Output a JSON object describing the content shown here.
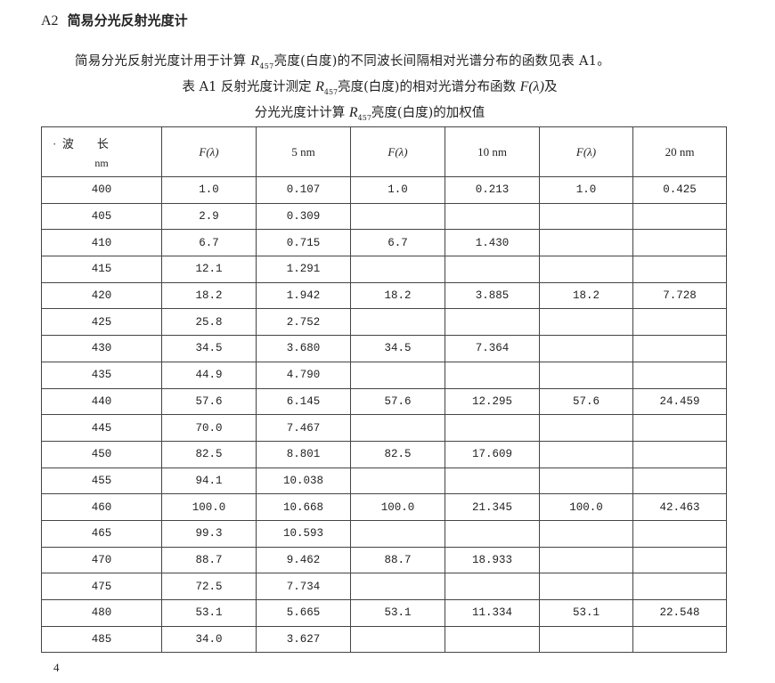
{
  "heading": {
    "number": "A2",
    "title": "简易分光反射光度计"
  },
  "paragraph": {
    "before": "简易分光反射光度计用于计算 ",
    "symbol": "R",
    "subscript": "457",
    "after": "亮度(白度)的不同波长间隔相对光谱分布的函数见表 A1。"
  },
  "caption": {
    "line1_before": "表 A1   反射光度计测定 ",
    "symbol": "R",
    "subscript": "457",
    "line1_mid": "亮度(白度)的相对光谱分布函数 ",
    "func": "F(λ)",
    "line1_after": "及",
    "line2_before": "分光光度计计算 ",
    "line2_after": "亮度(白度)的加权值"
  },
  "table": {
    "header": {
      "wavelength": "波　　长",
      "unit": "nm",
      "dot": "·",
      "cols": [
        "F(λ)",
        "5 nm",
        "F(λ)",
        "10 nm",
        "F(λ)",
        "20 nm"
      ]
    },
    "rows": [
      [
        "400",
        "1.0",
        "0.107",
        "1.0",
        "0.213",
        "1.0",
        "0.425"
      ],
      [
        "405",
        "2.9",
        "0.309",
        "",
        "",
        "",
        ""
      ],
      [
        "410",
        "6.7",
        "0.715",
        "6.7",
        "1.430",
        "",
        ""
      ],
      [
        "415",
        "12.1",
        "1.291",
        "",
        "",
        "",
        ""
      ],
      [
        "420",
        "18.2",
        "1.942",
        "18.2",
        "3.885",
        "18.2",
        "7.728"
      ],
      [
        "425",
        "25.8",
        "2.752",
        "",
        "",
        "",
        ""
      ],
      [
        "430",
        "34.5",
        "3.680",
        "34.5",
        "7.364",
        "",
        ""
      ],
      [
        "435",
        "44.9",
        "4.790",
        "",
        "",
        "",
        ""
      ],
      [
        "440",
        "57.6",
        "6.145",
        "57.6",
        "12.295",
        "57.6",
        "24.459"
      ],
      [
        "445",
        "70.0",
        "7.467",
        "",
        "",
        "",
        ""
      ],
      [
        "450",
        "82.5",
        "8.801",
        "82.5",
        "17.609",
        "",
        ""
      ],
      [
        "455",
        "94.1",
        "10.038",
        "",
        "",
        "",
        ""
      ],
      [
        "460",
        "100.0",
        "10.668",
        "100.0",
        "21.345",
        "100.0",
        "42.463"
      ],
      [
        "465",
        "99.3",
        "10.593",
        "",
        "",
        "",
        ""
      ],
      [
        "470",
        "88.7",
        "9.462",
        "88.7",
        "18.933",
        "",
        ""
      ],
      [
        "475",
        "72.5",
        "7.734",
        "",
        "",
        "",
        ""
      ],
      [
        "480",
        "53.1",
        "5.665",
        "53.1",
        "11.334",
        "53.1",
        "22.548"
      ],
      [
        "485",
        "34.0",
        "3.627",
        "",
        "",
        "",
        ""
      ]
    ]
  },
  "page_number": "4"
}
